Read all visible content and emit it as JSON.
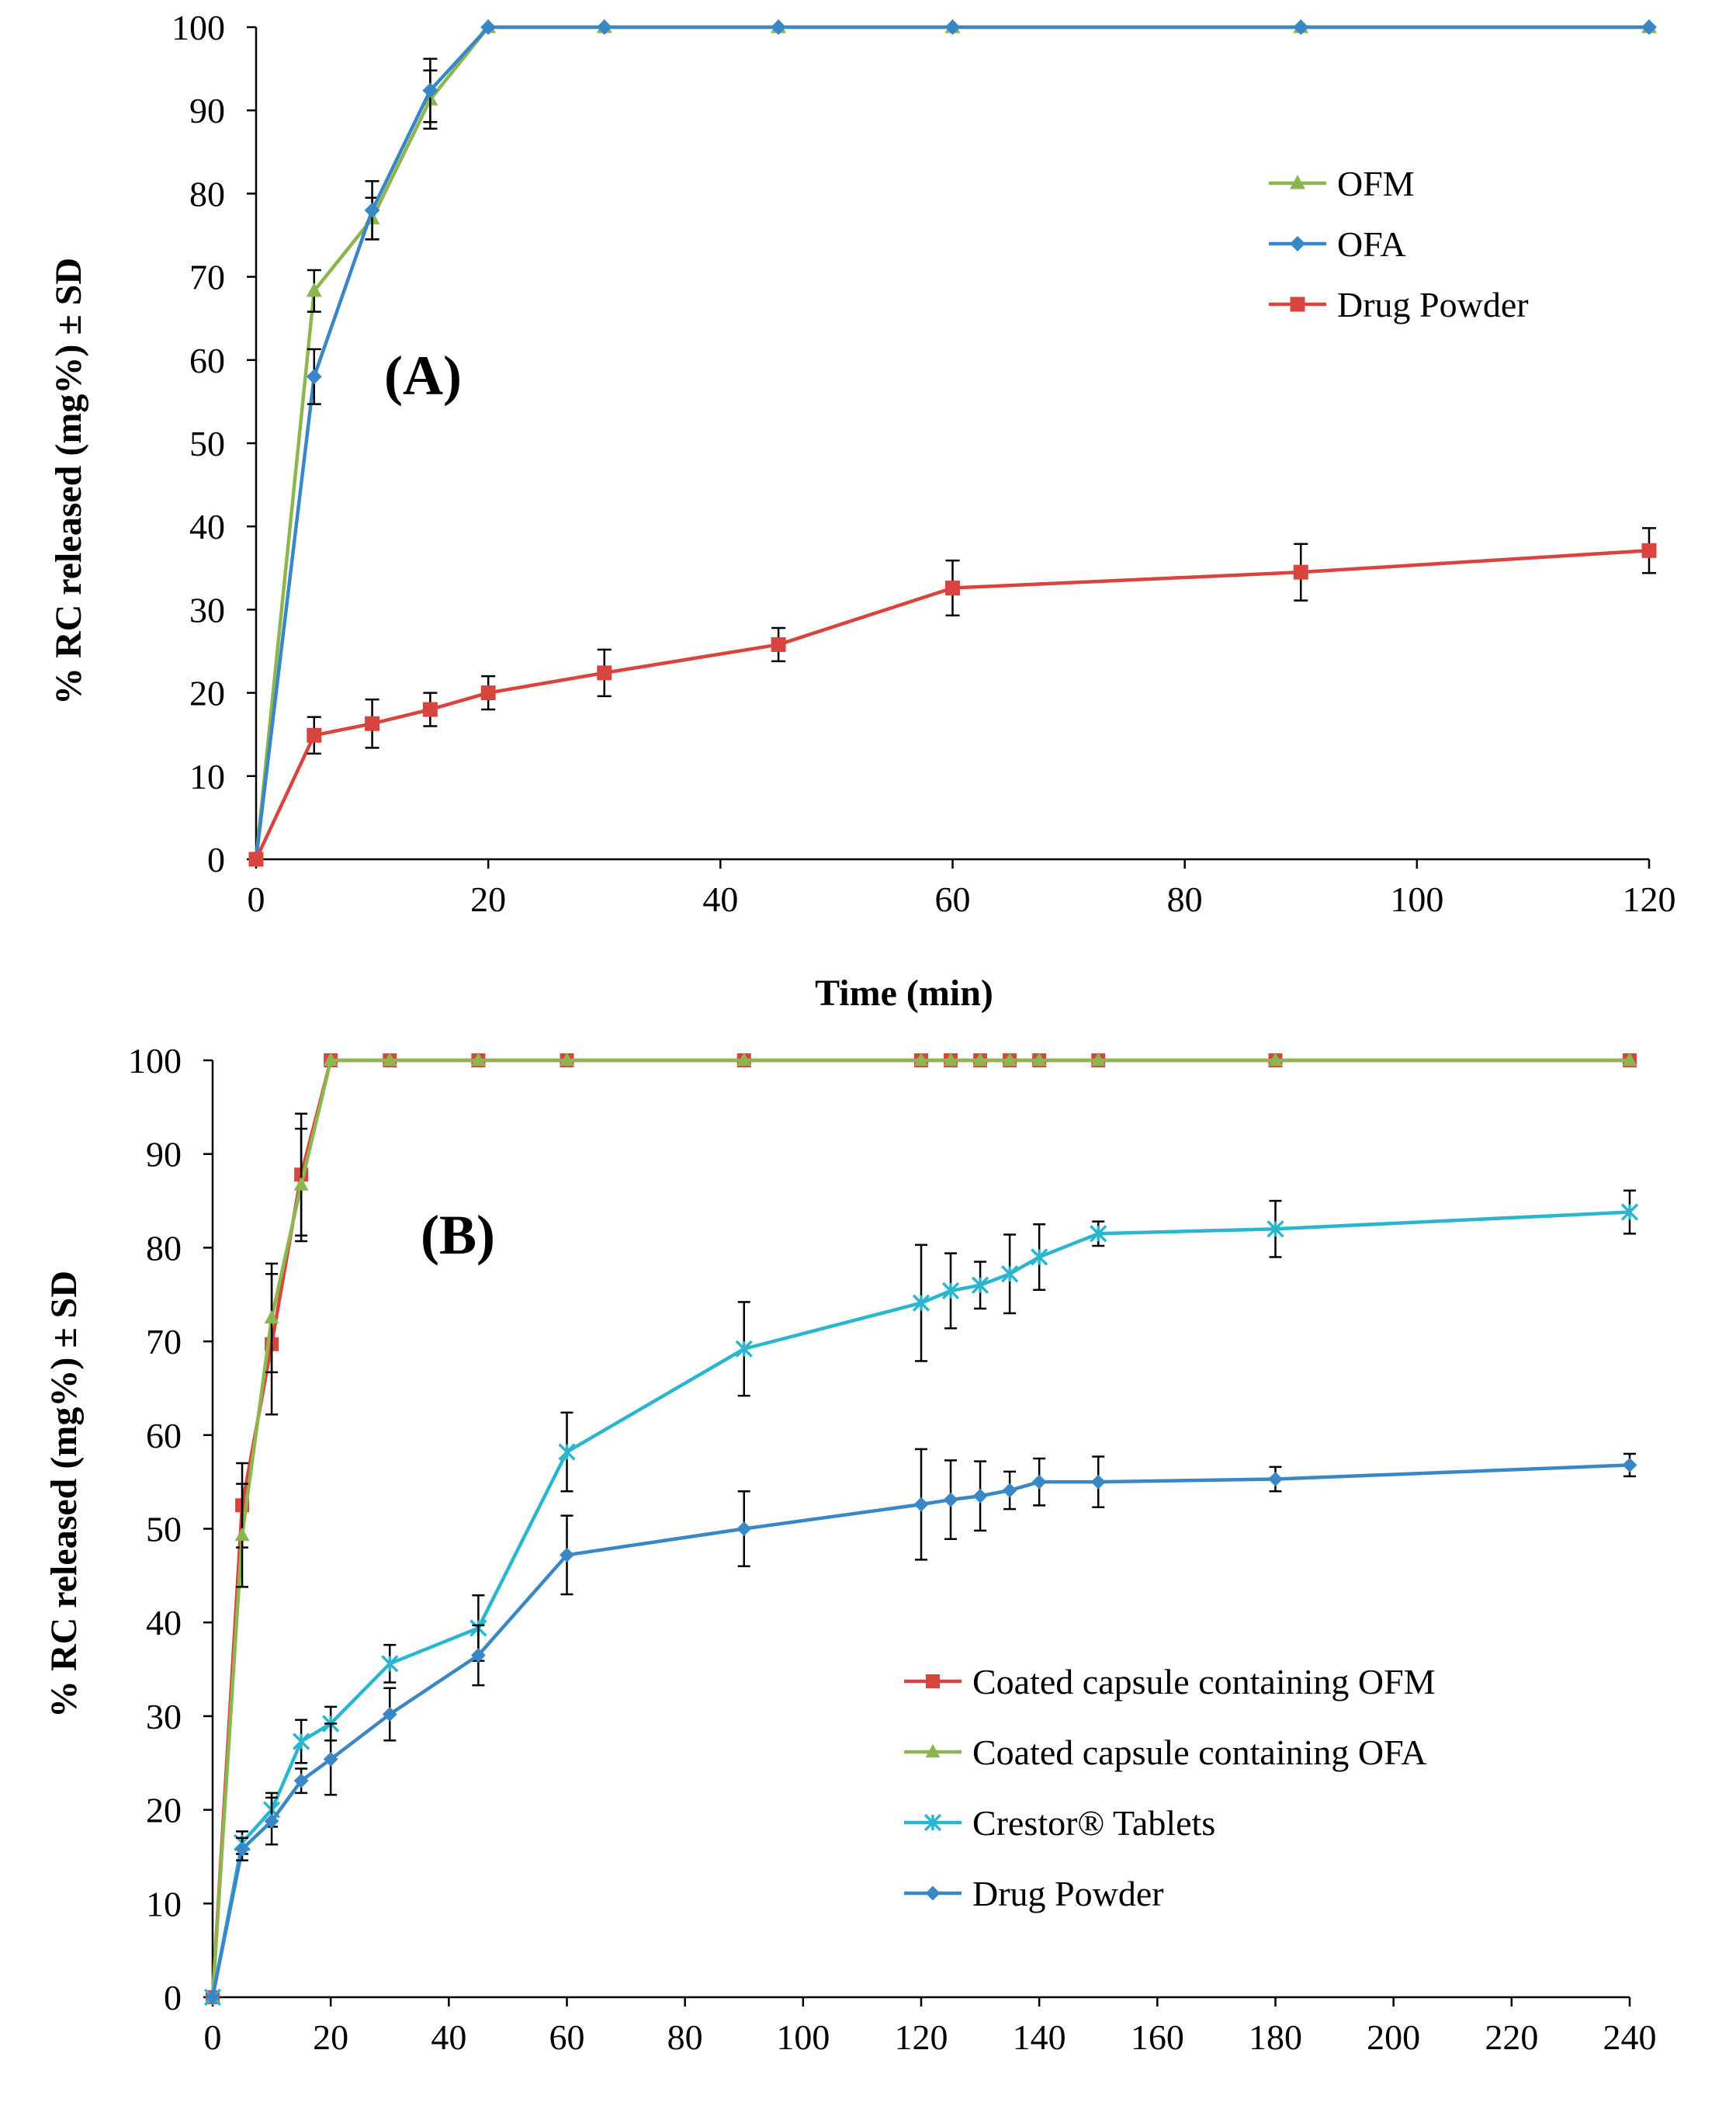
{
  "chart_data": [
    {
      "panel": "(A)",
      "type": "line",
      "xlabel": "Time (min)",
      "ylabel": "% RC  released (mg%) ± SD",
      "xlim": [
        0,
        120
      ],
      "ylim": [
        0,
        100
      ],
      "xticks": [
        0,
        20,
        40,
        60,
        80,
        100,
        120
      ],
      "yticks": [
        0,
        10,
        20,
        30,
        40,
        50,
        60,
        70,
        80,
        90,
        100
      ],
      "grid": "none",
      "legend": "top-right",
      "series": [
        {
          "name": "OFM",
          "color": "#8DB650",
          "marker": "triangle",
          "x": [
            0,
            5,
            10,
            15,
            20,
            30,
            45,
            60,
            90,
            120
          ],
          "y": [
            0,
            68.3,
            77,
            91.3,
            100,
            100,
            100,
            100,
            100,
            100
          ],
          "sd": [
            0,
            2.5,
            2.5,
            3.5,
            0,
            0,
            0,
            0,
            0,
            0
          ]
        },
        {
          "name": "OFA",
          "color": "#3A87C8",
          "marker": "diamond",
          "x": [
            0,
            5,
            10,
            15,
            20,
            30,
            45,
            60,
            90,
            120
          ],
          "y": [
            0,
            58,
            78,
            92.4,
            100,
            100,
            100,
            100,
            100,
            100
          ],
          "sd": [
            0,
            3.3,
            3.5,
            3.8,
            0,
            0,
            0,
            0,
            0,
            0
          ]
        },
        {
          "name": "Drug Powder",
          "color": "#D9443F",
          "marker": "square",
          "x": [
            0,
            5,
            10,
            15,
            20,
            30,
            45,
            60,
            90,
            120
          ],
          "y": [
            0,
            14.9,
            16.3,
            18,
            20,
            22.4,
            25.8,
            32.6,
            34.5,
            37.1
          ],
          "sd": [
            0,
            2.2,
            2.9,
            2,
            2,
            2.8,
            2,
            3.3,
            3.4,
            2.7
          ]
        }
      ]
    },
    {
      "panel": "(B)",
      "type": "line",
      "xlabel": "",
      "ylabel": "% RC released (mg%) ± SD",
      "xlim": [
        0,
        240
      ],
      "ylim": [
        0,
        100
      ],
      "xticks": [
        0,
        20,
        40,
        60,
        80,
        100,
        120,
        140,
        160,
        180,
        200,
        220,
        240
      ],
      "yticks": [
        0,
        10,
        20,
        30,
        40,
        50,
        60,
        70,
        80,
        90,
        100
      ],
      "grid": "none",
      "legend": "bottom-right",
      "series": [
        {
          "name": "Coated capsule containing OFM",
          "color": "#D9443F",
          "marker": "square",
          "x": [
            0,
            5,
            10,
            15,
            20,
            30,
            45,
            60,
            90,
            120,
            125,
            130,
            135,
            140,
            150,
            180,
            240
          ],
          "y": [
            0,
            52.5,
            69.7,
            87.8,
            100,
            100,
            100,
            100,
            100,
            100,
            100,
            100,
            100,
            100,
            100,
            100,
            100
          ],
          "sd": [
            0,
            4.5,
            7.5,
            6.5,
            0,
            0,
            0,
            0,
            0,
            0,
            0,
            0,
            0,
            0,
            0,
            0,
            0
          ]
        },
        {
          "name": "Coated capsule containing OFA",
          "color": "#8DB650",
          "marker": "triangle",
          "x": [
            0,
            5,
            10,
            15,
            20,
            30,
            45,
            60,
            90,
            120,
            125,
            130,
            135,
            140,
            150,
            180,
            240
          ],
          "y": [
            0,
            49.3,
            72.5,
            86.7,
            100,
            100,
            100,
            100,
            100,
            100,
            100,
            100,
            100,
            100,
            100,
            100,
            100
          ],
          "sd": [
            0,
            5.5,
            5.8,
            6,
            0,
            0,
            0,
            0,
            0,
            0,
            0,
            0,
            0,
            0,
            0,
            0,
            0
          ]
        },
        {
          "name": "Crestor® Tablets",
          "color": "#2BB5CF",
          "marker": "star",
          "x": [
            0,
            5,
            10,
            15,
            20,
            30,
            45,
            60,
            90,
            120,
            125,
            130,
            135,
            140,
            150,
            180,
            240
          ],
          "y": [
            0,
            16.5,
            20,
            27.3,
            29.2,
            35.6,
            39.4,
            58.2,
            69.2,
            74.1,
            75.4,
            76,
            77.2,
            79,
            81.5,
            82,
            83.8
          ],
          "sd": [
            0,
            1.2,
            1.8,
            2.3,
            1.8,
            2,
            3.5,
            4.2,
            5,
            6.2,
            4,
            2.5,
            4.2,
            3.5,
            1.3,
            3,
            2.3
          ]
        },
        {
          "name": "Drug Powder",
          "color": "#3A87C8",
          "marker": "diamond",
          "x": [
            0,
            5,
            10,
            15,
            20,
            30,
            45,
            60,
            90,
            120,
            125,
            130,
            135,
            140,
            150,
            180,
            240
          ],
          "y": [
            0,
            15.8,
            18.8,
            23.1,
            25.4,
            30.2,
            36.5,
            47.2,
            50,
            52.6,
            53.1,
            53.5,
            54.1,
            55,
            55,
            55.3,
            56.8
          ],
          "sd": [
            0,
            1.2,
            2.5,
            1.3,
            3.8,
            2.8,
            3.2,
            4.2,
            4,
            5.9,
            4.2,
            3.7,
            2,
            2.5,
            2.7,
            1.3,
            1.2
          ]
        }
      ]
    }
  ]
}
